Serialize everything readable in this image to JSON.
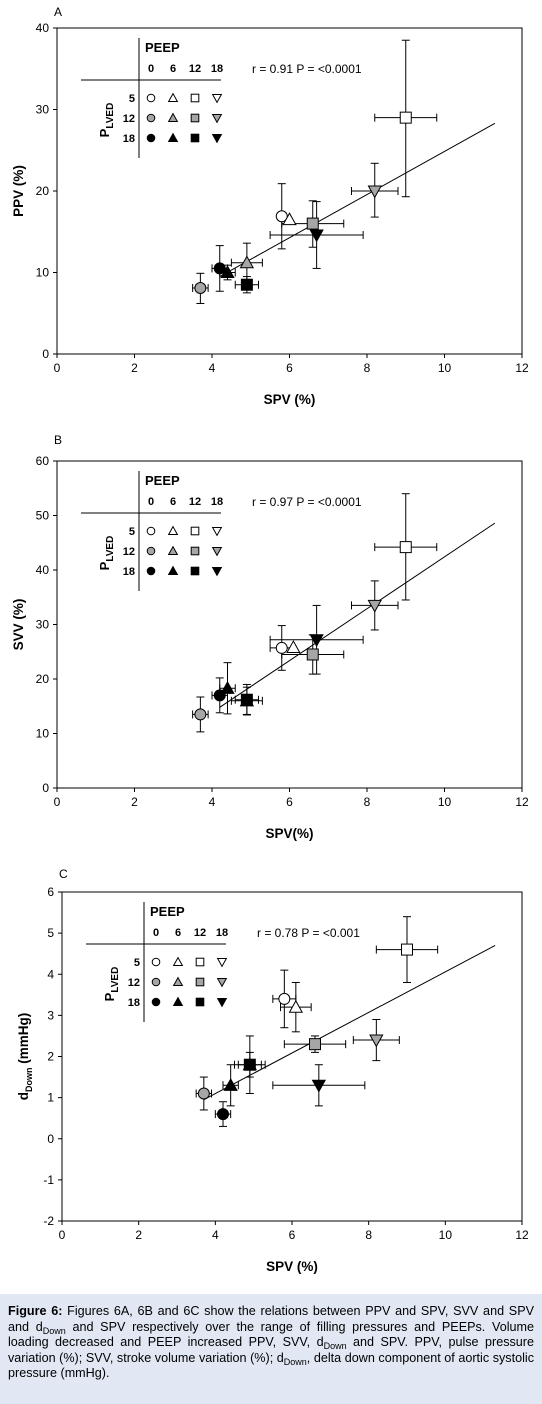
{
  "chart_data": [
    {
      "type": "scatter",
      "panel": "A",
      "xlabel": "SPV (%)",
      "ylabel": "PPV (%)",
      "xlim": [
        0,
        12
      ],
      "ylim": [
        0,
        40
      ],
      "xticks": [
        0,
        2,
        4,
        6,
        8,
        10,
        12
      ],
      "yticks": [
        0,
        10,
        20,
        30,
        40
      ],
      "annotation": "r = 0.91 P = <0.0001",
      "regression": {
        "x": [
          4.2,
          11.3
        ],
        "y": [
          9.5,
          28.3
        ]
      },
      "grid": false,
      "points": [
        {
          "marker": "circle",
          "fill": "white",
          "peep": "0",
          "plved": "5",
          "x": 5.8,
          "y": 16.9,
          "xerr": [
            0,
            0
          ],
          "yerr": [
            4,
            4
          ]
        },
        {
          "marker": "triangle-up",
          "fill": "white",
          "peep": "6",
          "plved": "5",
          "x": 6.0,
          "y": 16.5,
          "xerr": [
            0,
            0
          ],
          "yerr": [
            0,
            0
          ]
        },
        {
          "marker": "square",
          "fill": "white",
          "peep": "12",
          "plved": "5",
          "x": 9.0,
          "y": 29.0,
          "xerr": [
            0.8,
            0.8
          ],
          "yerr": [
            9.7,
            9.5
          ]
        },
        {
          "marker": "triangle-down",
          "fill": "grey",
          "peep": "18",
          "plved": "12",
          "x": 8.2,
          "y": 20.0,
          "xerr": [
            0.6,
            0.6
          ],
          "yerr": [
            3.2,
            3.4
          ]
        },
        {
          "marker": "square",
          "fill": "grey",
          "peep": "12",
          "plved": "12",
          "x": 6.6,
          "y": 16.0,
          "xerr": [
            0.8,
            0.8
          ],
          "yerr": [
            2.9,
            2.8
          ]
        },
        {
          "marker": "triangle-up",
          "fill": "grey",
          "peep": "6",
          "plved": "12",
          "x": 4.9,
          "y": 11.2,
          "xerr": [
            0.4,
            0.4
          ],
          "yerr": [
            2.3,
            2.4
          ]
        },
        {
          "marker": "circle",
          "fill": "grey",
          "peep": "0",
          "plved": "12",
          "x": 3.7,
          "y": 8.1,
          "xerr": [
            0.2,
            0.2
          ],
          "yerr": [
            1.9,
            1.8
          ]
        },
        {
          "marker": "circle",
          "fill": "black",
          "peep": "0",
          "plved": "18",
          "x": 4.2,
          "y": 10.5,
          "xerr": [
            0.2,
            0.2
          ],
          "yerr": [
            2.8,
            2.8
          ]
        },
        {
          "marker": "triangle-up",
          "fill": "black",
          "peep": "6",
          "plved": "18",
          "x": 4.4,
          "y": 10.0,
          "xerr": [
            0.2,
            0.2
          ],
          "yerr": [
            0.9,
            0.9
          ]
        },
        {
          "marker": "square",
          "fill": "black",
          "peep": "12",
          "plved": "18",
          "x": 4.9,
          "y": 8.5,
          "xerr": [
            0.3,
            0.3
          ],
          "yerr": [
            1.0,
            1.0
          ]
        },
        {
          "marker": "triangle-down",
          "fill": "black",
          "peep": "18",
          "plved": "18",
          "x": 6.7,
          "y": 14.6,
          "xerr": [
            1.2,
            1.2
          ],
          "yerr": [
            4.1,
            4.1
          ]
        }
      ]
    },
    {
      "type": "scatter",
      "panel": "B",
      "xlabel": "SPV(%)",
      "ylabel": "SVV (%)",
      "xlim": [
        0,
        12
      ],
      "ylim": [
        0,
        60
      ],
      "xticks": [
        0,
        2,
        4,
        6,
        8,
        10,
        12
      ],
      "yticks": [
        0,
        10,
        20,
        30,
        40,
        50,
        60
      ],
      "annotation": "r = 0.97 P = <0.0001",
      "regression": {
        "x": [
          4.2,
          11.3
        ],
        "y": [
          14.8,
          48.6
        ]
      },
      "grid": false,
      "points": [
        {
          "marker": "circle",
          "fill": "white",
          "peep": "0",
          "plved": "5",
          "x": 5.8,
          "y": 25.7,
          "xerr": [
            0.3,
            0.3
          ],
          "yerr": [
            4.1,
            4.1
          ]
        },
        {
          "marker": "triangle-up",
          "fill": "white",
          "peep": "6",
          "plved": "5",
          "x": 6.1,
          "y": 25.8,
          "xerr": [
            0,
            0
          ],
          "yerr": [
            0,
            0
          ]
        },
        {
          "marker": "square",
          "fill": "white",
          "peep": "12",
          "plved": "5",
          "x": 9.0,
          "y": 44.2,
          "xerr": [
            0.8,
            0.8
          ],
          "yerr": [
            9.7,
            9.8
          ]
        },
        {
          "marker": "triangle-down",
          "fill": "grey",
          "peep": "18",
          "plved": "12",
          "x": 8.2,
          "y": 33.5,
          "xerr": [
            0.6,
            0.6
          ],
          "yerr": [
            4.5,
            4.5
          ]
        },
        {
          "marker": "square",
          "fill": "grey",
          "peep": "12",
          "plved": "12",
          "x": 6.6,
          "y": 24.5,
          "xerr": [
            0.8,
            0.8
          ],
          "yerr": [
            3.6,
            3.6
          ]
        },
        {
          "marker": "triangle-up",
          "fill": "grey",
          "peep": "6",
          "plved": "12",
          "x": 4.9,
          "y": 16.0,
          "xerr": [
            0.4,
            0.4
          ],
          "yerr": [
            2.5,
            2.5
          ]
        },
        {
          "marker": "circle",
          "fill": "grey",
          "peep": "0",
          "plved": "12",
          "x": 3.7,
          "y": 13.5,
          "xerr": [
            0.2,
            0.2
          ],
          "yerr": [
            3.2,
            3.2
          ]
        },
        {
          "marker": "circle",
          "fill": "black",
          "peep": "0",
          "plved": "18",
          "x": 4.2,
          "y": 17.0,
          "xerr": [
            0.2,
            0.2
          ],
          "yerr": [
            3.2,
            3.2
          ]
        },
        {
          "marker": "triangle-up",
          "fill": "black",
          "peep": "6",
          "plved": "18",
          "x": 4.4,
          "y": 18.3,
          "xerr": [
            0.2,
            0.2
          ],
          "yerr": [
            4.7,
            4.7
          ]
        },
        {
          "marker": "square",
          "fill": "black",
          "peep": "12",
          "plved": "18",
          "x": 4.9,
          "y": 16.2,
          "xerr": [
            0.3,
            0.3
          ],
          "yerr": [
            2.8,
            2.8
          ]
        },
        {
          "marker": "triangle-down",
          "fill": "black",
          "peep": "18",
          "plved": "18",
          "x": 6.7,
          "y": 27.2,
          "xerr": [
            1.2,
            1.2
          ],
          "yerr": [
            6.3,
            6.3
          ]
        }
      ]
    },
    {
      "type": "scatter",
      "panel": "C",
      "xlabel": "SPV (%)",
      "ylabel": "dDown (mmHg)",
      "xlim": [
        0,
        12
      ],
      "ylim": [
        -2,
        6
      ],
      "xticks": [
        0,
        2,
        4,
        6,
        8,
        10,
        12
      ],
      "yticks": [
        -2,
        -1,
        0,
        1,
        2,
        3,
        4,
        5,
        6
      ],
      "annotation": "r = 0.78 P = <0.001",
      "regression": {
        "x": [
          3.7,
          11.3
        ],
        "y": [
          0.95,
          4.7
        ]
      },
      "grid": false,
      "points": [
        {
          "marker": "circle",
          "fill": "white",
          "peep": "0",
          "plved": "5",
          "x": 5.8,
          "y": 3.4,
          "xerr": [
            0.3,
            0.3
          ],
          "yerr": [
            0.7,
            0.7
          ]
        },
        {
          "marker": "triangle-up",
          "fill": "white",
          "peep": "6",
          "plved": "5",
          "x": 6.1,
          "y": 3.2,
          "xerr": [
            0.4,
            0.4
          ],
          "yerr": [
            0.6,
            0.6
          ]
        },
        {
          "marker": "square",
          "fill": "white",
          "peep": "12",
          "plved": "5",
          "x": 9.0,
          "y": 4.6,
          "xerr": [
            0.8,
            0.8
          ],
          "yerr": [
            0.8,
            0.8
          ]
        },
        {
          "marker": "triangle-down",
          "fill": "grey",
          "peep": "18",
          "plved": "12",
          "x": 8.2,
          "y": 2.4,
          "xerr": [
            0.6,
            0.6
          ],
          "yerr": [
            0.5,
            0.5
          ]
        },
        {
          "marker": "square",
          "fill": "grey",
          "peep": "12",
          "plved": "12",
          "x": 6.6,
          "y": 2.3,
          "xerr": [
            0.8,
            0.8
          ],
          "yerr": [
            0.2,
            0.2
          ]
        },
        {
          "marker": "triangle-up",
          "fill": "grey",
          "peep": "6",
          "plved": "12",
          "x": 4.9,
          "y": 1.8,
          "xerr": [
            0.4,
            0.4
          ],
          "yerr": [
            0.3,
            0.3
          ]
        },
        {
          "marker": "circle",
          "fill": "grey",
          "peep": "0",
          "plved": "12",
          "x": 3.7,
          "y": 1.1,
          "xerr": [
            0.2,
            0.2
          ],
          "yerr": [
            0.4,
            0.4
          ]
        },
        {
          "marker": "circle",
          "fill": "black",
          "peep": "0",
          "plved": "18",
          "x": 4.2,
          "y": 0.6,
          "xerr": [
            0.2,
            0.2
          ],
          "yerr": [
            0.3,
            0.3
          ]
        },
        {
          "marker": "triangle-up",
          "fill": "black",
          "peep": "6",
          "plved": "18",
          "x": 4.4,
          "y": 1.3,
          "xerr": [
            0.2,
            0.2
          ],
          "yerr": [
            0.5,
            0.5
          ]
        },
        {
          "marker": "square",
          "fill": "black",
          "peep": "12",
          "plved": "18",
          "x": 4.9,
          "y": 1.8,
          "xerr": [
            0.3,
            0.3
          ],
          "yerr": [
            0.7,
            0.7
          ]
        },
        {
          "marker": "triangle-down",
          "fill": "black",
          "peep": "18",
          "plved": "18",
          "x": 6.7,
          "y": 1.3,
          "xerr": [
            1.2,
            1.2
          ],
          "yerr": [
            0.5,
            0.5
          ]
        }
      ]
    }
  ],
  "legend": {
    "title": "PEEP",
    "columns": [
      "0",
      "6",
      "12",
      "18"
    ],
    "rows": [
      "5",
      "12",
      "18"
    ],
    "row_title": "P",
    "row_title_sub": "LVED"
  },
  "colors": {
    "grey_fill": "#a6a6a6",
    "black_fill": "#000000",
    "white_fill": "#ffffff",
    "caption_bg": "#e1e8f4"
  },
  "caption": {
    "label": "Figure 6:",
    "text": "Figures 6A, 6B and 6C show the relations between PPV and SPV, SVV and SPV and dDown and SPV respectively over the range of filling pressures and PEEPs. Volume loading decreased and PEEP increased PPV, SVV, dDown and SPV. PPV, pulse pressure variation (%); SVV, stroke volume variation (%); dDown, delta down component of aortic systolic pressure (mmHg)."
  }
}
